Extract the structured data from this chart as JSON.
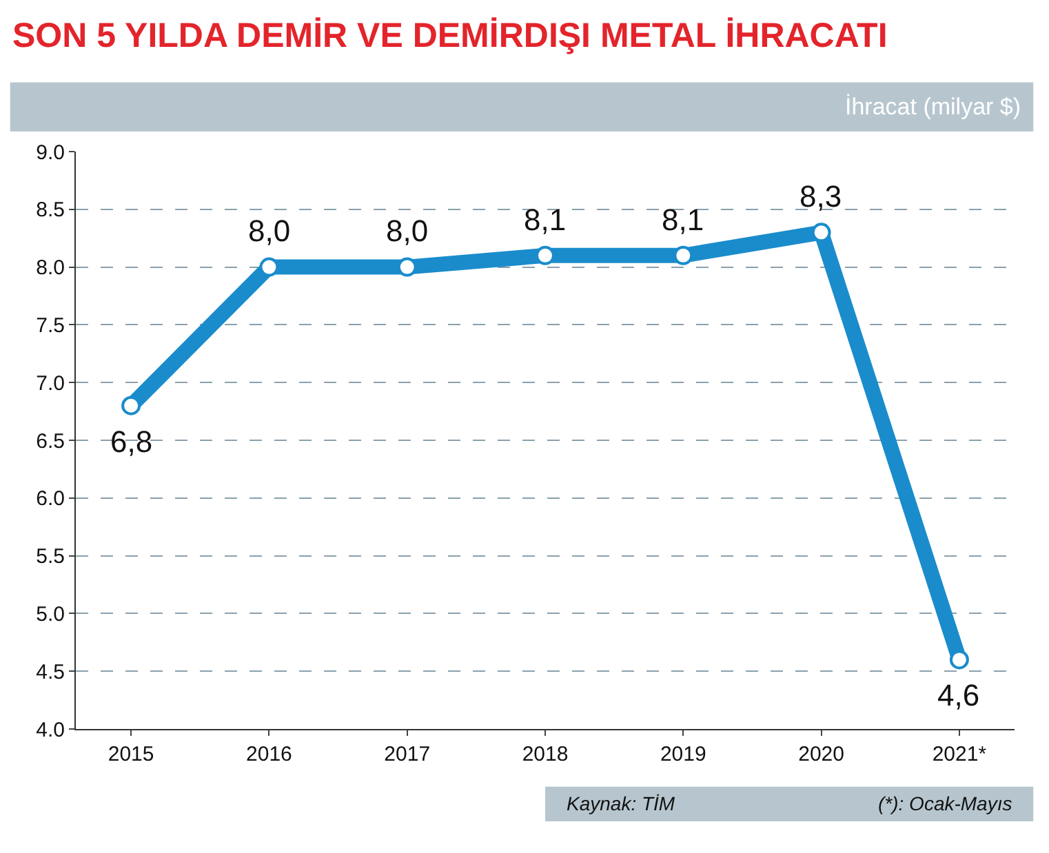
{
  "chart_data": {
    "type": "line",
    "title": "SON 5 YILDA DEMİR VE DEMİRDIŞI METAL İHRACATI",
    "subtitle": "İhracat (milyar $)",
    "categories": [
      "2015",
      "2016",
      "2017",
      "2018",
      "2019",
      "2020",
      "2021*"
    ],
    "series": [
      {
        "color": "#1a8ccc",
        "values": [
          6.8,
          8.0,
          8.0,
          8.1,
          8.1,
          8.3,
          4.6
        ],
        "value_labels": [
          "6,8",
          "8,0",
          "8,0",
          "8,1",
          "8,1",
          "8,3",
          "4,6"
        ]
      }
    ],
    "ylim": [
      4.0,
      9.0
    ],
    "yticks": [
      {
        "value": 4.0,
        "label": "4.0"
      },
      {
        "value": 4.5,
        "label": "4.5"
      },
      {
        "value": 5.0,
        "label": "5.0"
      },
      {
        "value": 5.5,
        "label": "5.5"
      },
      {
        "value": 6.0,
        "label": "6.0"
      },
      {
        "value": 6.5,
        "label": "6.5"
      },
      {
        "value": 7.0,
        "label": "7.0"
      },
      {
        "value": 7.5,
        "label": "7.5"
      },
      {
        "value": 8.0,
        "label": "8.0"
      },
      {
        "value": 8.5,
        "label": "8.5"
      },
      {
        "value": 9.0,
        "label": "9.0"
      }
    ],
    "grid": "y",
    "marker": "circle",
    "line_style": "solid",
    "annotations": [
      "Kaynak: TİM",
      "(*): Ocak-Mayıs"
    ]
  }
}
